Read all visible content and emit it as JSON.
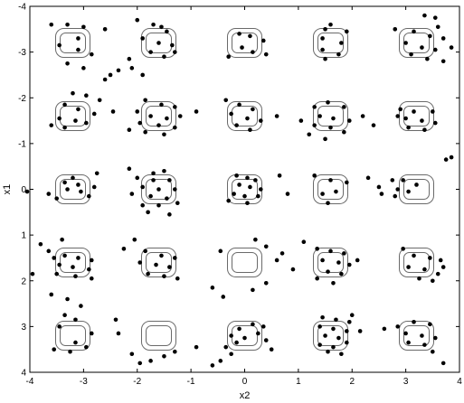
{
  "chart_data": {
    "type": "scatter",
    "xlabel": "x2",
    "ylabel": "x1",
    "xlim": [
      -4,
      4
    ],
    "ylim": [
      -4,
      4
    ],
    "y_axis_reversed": true,
    "grid": false,
    "xticks": [
      "-4",
      "-3",
      "-2",
      "-1",
      "0",
      "1",
      "2",
      "3",
      "4"
    ],
    "yticks": [
      "-4",
      "-3",
      "-2",
      "-1",
      "0",
      "1",
      "2",
      "3",
      "4"
    ],
    "regions": {
      "shape": "rounded-square",
      "outline_color": "#6a6a6a",
      "centers_x": [
        -3.2,
        -1.6,
        0,
        1.6,
        3.2
      ],
      "centers_y": [
        -3.2,
        -1.6,
        0,
        1.6,
        3.2
      ]
    },
    "point_color": "#000000",
    "points": [
      [
        -3.6,
        -3.6
      ],
      [
        -3.3,
        -3.6
      ],
      [
        -3.0,
        -3.55
      ],
      [
        -2.6,
        -3.5
      ],
      [
        -3.45,
        -3.15
      ],
      [
        -3.1,
        -3.05
      ],
      [
        -2.85,
        -2.95
      ],
      [
        -3.3,
        -2.75
      ],
      [
        -3.0,
        -2.65
      ],
      [
        -2.5,
        -2.5
      ],
      [
        -3.1,
        -3.3
      ],
      [
        -2.0,
        -3.7
      ],
      [
        -1.7,
        -3.6
      ],
      [
        -1.55,
        -3.55
      ],
      [
        -1.45,
        -3.45
      ],
      [
        -1.9,
        -3.3
      ],
      [
        -1.6,
        -3.2
      ],
      [
        -1.35,
        -3.15
      ],
      [
        -1.75,
        -3.0
      ],
      [
        -1.5,
        -2.9
      ],
      [
        -2.15,
        -2.85
      ],
      [
        -2.1,
        -2.65
      ],
      [
        -1.9,
        -2.5
      ],
      [
        -1.3,
        -3.0
      ],
      [
        -0.1,
        -3.4
      ],
      [
        0.1,
        -3.35
      ],
      [
        0.35,
        -3.25
      ],
      [
        -0.05,
        -3.1
      ],
      [
        0.15,
        -3.0
      ],
      [
        0.4,
        -2.95
      ],
      [
        -0.3,
        -2.9
      ],
      [
        1.5,
        -3.5
      ],
      [
        1.9,
        -3.45
      ],
      [
        1.45,
        -3.3
      ],
      [
        1.8,
        -3.2
      ],
      [
        1.45,
        -3.05
      ],
      [
        1.75,
        -2.95
      ],
      [
        1.5,
        -2.85
      ],
      [
        1.6,
        -3.6
      ],
      [
        3.35,
        -3.8
      ],
      [
        3.55,
        -3.75
      ],
      [
        3.6,
        -3.55
      ],
      [
        3.15,
        -3.45
      ],
      [
        3.45,
        -3.35
      ],
      [
        3.7,
        -3.3
      ],
      [
        3.0,
        -3.2
      ],
      [
        3.3,
        -3.1
      ],
      [
        3.55,
        -3.05
      ],
      [
        3.1,
        -2.95
      ],
      [
        3.4,
        -2.85
      ],
      [
        3.7,
        -2.8
      ],
      [
        3.85,
        -3.1
      ],
      [
        2.8,
        -3.5
      ],
      [
        -3.2,
        -2.1
      ],
      [
        -2.95,
        -2.05
      ],
      [
        -2.7,
        -1.95
      ],
      [
        -3.35,
        -1.85
      ],
      [
        -3.1,
        -1.75
      ],
      [
        -2.8,
        -1.65
      ],
      [
        -3.45,
        -1.55
      ],
      [
        -3.15,
        -1.5
      ],
      [
        -2.95,
        -1.45
      ],
      [
        -3.6,
        -1.4
      ],
      [
        -3.35,
        -1.35
      ],
      [
        -2.45,
        -1.7
      ],
      [
        -2.6,
        -2.4
      ],
      [
        -2.35,
        -2.6
      ],
      [
        -1.85,
        -1.95
      ],
      [
        -1.55,
        -1.85
      ],
      [
        -1.3,
        -1.8
      ],
      [
        -2.0,
        -1.7
      ],
      [
        -1.75,
        -1.6
      ],
      [
        -1.45,
        -1.55
      ],
      [
        -1.95,
        -1.45
      ],
      [
        -1.6,
        -1.4
      ],
      [
        -1.3,
        -1.35
      ],
      [
        -1.85,
        -1.25
      ],
      [
        -1.5,
        -1.2
      ],
      [
        -2.15,
        -1.3
      ],
      [
        -1.2,
        -1.6
      ],
      [
        -0.35,
        -1.95
      ],
      [
        -0.1,
        -1.85
      ],
      [
        0.15,
        -1.75
      ],
      [
        -0.25,
        -1.65
      ],
      [
        0.05,
        -1.55
      ],
      [
        0.3,
        -1.5
      ],
      [
        -0.15,
        -1.4
      ],
      [
        0.1,
        -1.3
      ],
      [
        0.6,
        -1.6
      ],
      [
        -0.9,
        -1.7
      ],
      [
        1.3,
        -1.8
      ],
      [
        1.55,
        -1.9
      ],
      [
        1.85,
        -1.8
      ],
      [
        1.4,
        -1.6
      ],
      [
        1.65,
        -1.55
      ],
      [
        1.95,
        -1.5
      ],
      [
        1.3,
        -1.4
      ],
      [
        1.6,
        -1.35
      ],
      [
        1.85,
        -1.25
      ],
      [
        1.2,
        -1.2
      ],
      [
        1.5,
        -1.1
      ],
      [
        2.2,
        -1.6
      ],
      [
        2.4,
        -1.4
      ],
      [
        1.05,
        -1.5
      ],
      [
        2.9,
        -1.75
      ],
      [
        3.15,
        -1.7
      ],
      [
        3.5,
        -1.7
      ],
      [
        3.0,
        -1.55
      ],
      [
        3.3,
        -1.5
      ],
      [
        3.55,
        -1.45
      ],
      [
        3.05,
        -1.35
      ],
      [
        3.35,
        -1.3
      ],
      [
        2.85,
        -1.6
      ],
      [
        -3.65,
        0.1
      ],
      [
        -3.35,
        -0.15
      ],
      [
        -3.1,
        -0.1
      ],
      [
        -2.8,
        -0.05
      ],
      [
        -3.3,
        0.0
      ],
      [
        -3.05,
        0.05
      ],
      [
        -2.9,
        0.15
      ],
      [
        -3.5,
        0.2
      ],
      [
        -3.2,
        -0.25
      ],
      [
        -2.75,
        -0.35
      ],
      [
        -4.05,
        0.05
      ],
      [
        -2.0,
        -0.25
      ],
      [
        -1.7,
        -0.2
      ],
      [
        -1.4,
        -0.2
      ],
      [
        -1.9,
        -0.05
      ],
      [
        -1.6,
        0.0
      ],
      [
        -1.3,
        0.0
      ],
      [
        -2.1,
        0.1
      ],
      [
        -1.75,
        0.15
      ],
      [
        -1.45,
        0.2
      ],
      [
        -1.9,
        0.35
      ],
      [
        -1.6,
        0.35
      ],
      [
        -1.25,
        0.3
      ],
      [
        -2.15,
        -0.45
      ],
      [
        -1.5,
        -0.4
      ],
      [
        -1.8,
        0.5
      ],
      [
        -1.4,
        0.55
      ],
      [
        -1.7,
        -0.35
      ],
      [
        -0.15,
        -0.3
      ],
      [
        0.05,
        -0.25
      ],
      [
        0.2,
        -0.2
      ],
      [
        -0.1,
        -0.1
      ],
      [
        0.1,
        -0.05
      ],
      [
        0.3,
        0.0
      ],
      [
        -0.2,
        0.1
      ],
      [
        0.0,
        0.15
      ],
      [
        0.25,
        0.15
      ],
      [
        0.05,
        0.3
      ],
      [
        -0.3,
        0.25
      ],
      [
        0.8,
        0.1
      ],
      [
        0.65,
        -0.3
      ],
      [
        1.3,
        -0.3
      ],
      [
        1.6,
        -0.2
      ],
      [
        1.9,
        -0.15
      ],
      [
        1.45,
        0.1
      ],
      [
        1.7,
        0.05
      ],
      [
        1.55,
        0.3
      ],
      [
        2.3,
        -0.25
      ],
      [
        2.75,
        -0.2
      ],
      [
        2.95,
        -0.2
      ],
      [
        3.2,
        -0.1
      ],
      [
        2.85,
        0.0
      ],
      [
        3.05,
        0.05
      ],
      [
        2.8,
        0.15
      ],
      [
        2.55,
        0.1
      ],
      [
        2.5,
        -0.05
      ],
      [
        3.75,
        -0.65
      ],
      [
        3.85,
        -0.7
      ],
      [
        -3.8,
        1.2
      ],
      [
        -3.55,
        1.5
      ],
      [
        -3.35,
        1.45
      ],
      [
        -3.1,
        1.5
      ],
      [
        -2.85,
        1.55
      ],
      [
        -3.45,
        1.65
      ],
      [
        -3.2,
        1.7
      ],
      [
        -2.9,
        1.75
      ],
      [
        -3.5,
        1.85
      ],
      [
        -3.15,
        1.9
      ],
      [
        -2.85,
        1.95
      ],
      [
        -3.95,
        1.85
      ],
      [
        -3.65,
        1.35
      ],
      [
        -3.4,
        1.1
      ],
      [
        -1.85,
        1.35
      ],
      [
        -1.55,
        1.45
      ],
      [
        -1.3,
        1.5
      ],
      [
        -1.95,
        1.6
      ],
      [
        -1.65,
        1.65
      ],
      [
        -1.4,
        1.7
      ],
      [
        -1.8,
        1.85
      ],
      [
        -1.5,
        1.9
      ],
      [
        -1.25,
        1.95
      ],
      [
        -2.25,
        1.3
      ],
      [
        -2.05,
        1.1
      ],
      [
        -0.45,
        1.35
      ],
      [
        0.2,
        1.1
      ],
      [
        0.4,
        1.25
      ],
      [
        0.7,
        1.4
      ],
      [
        0.6,
        1.55
      ],
      [
        0.9,
        1.75
      ],
      [
        0.4,
        2.05
      ],
      [
        0.15,
        2.2
      ],
      [
        1.1,
        1.15
      ],
      [
        1.35,
        1.3
      ],
      [
        1.6,
        1.35
      ],
      [
        1.85,
        1.4
      ],
      [
        1.45,
        1.55
      ],
      [
        1.75,
        1.6
      ],
      [
        1.95,
        1.65
      ],
      [
        1.55,
        1.8
      ],
      [
        1.8,
        1.85
      ],
      [
        1.35,
        1.95
      ],
      [
        1.65,
        2.05
      ],
      [
        2.1,
        1.55
      ],
      [
        2.95,
        1.3
      ],
      [
        3.15,
        1.45
      ],
      [
        3.45,
        1.5
      ],
      [
        3.65,
        1.55
      ],
      [
        3.05,
        1.7
      ],
      [
        3.35,
        1.75
      ],
      [
        3.6,
        1.85
      ],
      [
        3.25,
        1.95
      ],
      [
        3.5,
        2.0
      ],
      [
        3.7,
        1.7
      ],
      [
        -3.6,
        2.3
      ],
      [
        -3.3,
        2.4
      ],
      [
        -3.05,
        2.55
      ],
      [
        -3.35,
        2.75
      ],
      [
        -3.15,
        2.85
      ],
      [
        -3.45,
        3.0
      ],
      [
        -2.85,
        3.15
      ],
      [
        -3.15,
        3.35
      ],
      [
        -2.95,
        3.45
      ],
      [
        -3.55,
        3.5
      ],
      [
        -3.25,
        3.55
      ],
      [
        -2.4,
        2.85
      ],
      [
        -2.35,
        3.15
      ],
      [
        -2.1,
        3.6
      ],
      [
        -1.95,
        3.8
      ],
      [
        -1.75,
        3.75
      ],
      [
        -1.5,
        3.65
      ],
      [
        -1.3,
        3.55
      ],
      [
        -0.9,
        3.45
      ],
      [
        -0.6,
        2.15
      ],
      [
        -0.4,
        2.35
      ],
      [
        -0.6,
        3.85
      ],
      [
        -0.45,
        3.75
      ],
      [
        -0.25,
        3.6
      ],
      [
        -0.35,
        3.45
      ],
      [
        -0.15,
        3.35
      ],
      [
        0.0,
        3.25
      ],
      [
        0.25,
        3.15
      ],
      [
        -0.1,
        3.05
      ],
      [
        0.15,
        2.95
      ],
      [
        0.35,
        3.0
      ],
      [
        0.5,
        3.5
      ],
      [
        0.4,
        3.3
      ],
      [
        -0.25,
        3.2
      ],
      [
        1.45,
        2.8
      ],
      [
        1.7,
        2.85
      ],
      [
        1.95,
        2.9
      ],
      [
        1.4,
        3.0
      ],
      [
        1.65,
        3.05
      ],
      [
        1.9,
        3.1
      ],
      [
        1.5,
        3.2
      ],
      [
        1.75,
        3.25
      ],
      [
        1.4,
        3.4
      ],
      [
        1.65,
        3.45
      ],
      [
        1.9,
        3.35
      ],
      [
        1.55,
        3.55
      ],
      [
        2.15,
        3.1
      ],
      [
        2.0,
        2.75
      ],
      [
        1.8,
        3.6
      ],
      [
        2.85,
        3.0
      ],
      [
        3.15,
        2.9
      ],
      [
        3.45,
        2.95
      ],
      [
        3.0,
        3.15
      ],
      [
        3.3,
        3.2
      ],
      [
        3.55,
        3.25
      ],
      [
        3.05,
        3.35
      ],
      [
        3.35,
        3.4
      ],
      [
        3.5,
        3.55
      ],
      [
        3.7,
        3.8
      ],
      [
        2.6,
        3.05
      ]
    ]
  }
}
